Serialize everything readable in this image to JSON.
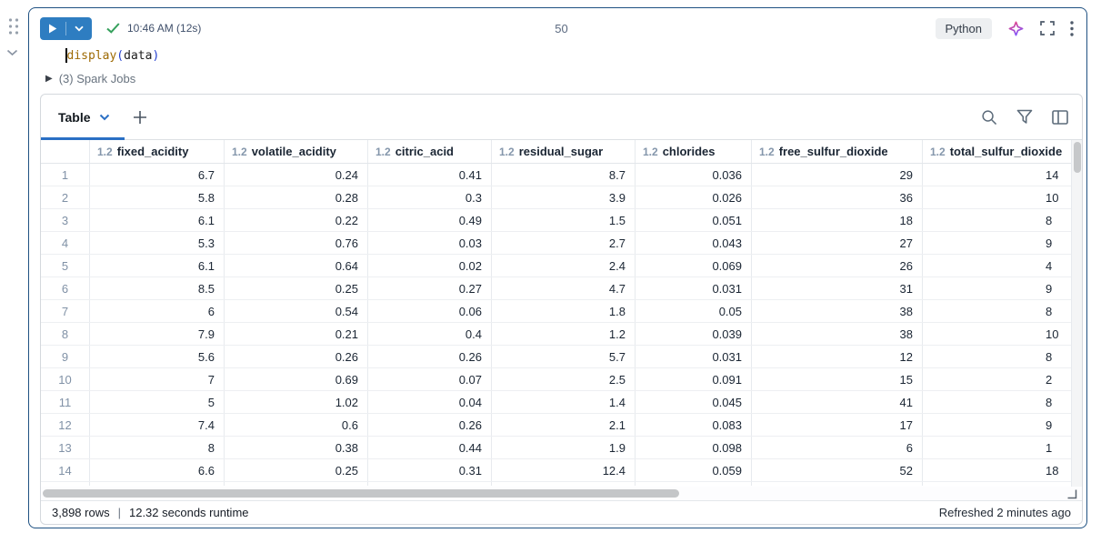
{
  "cell": {
    "toolbar": {
      "last_run": "10:46 AM (12s)",
      "cell_number": "50",
      "language": "Python"
    },
    "code": {
      "function": "display",
      "open": "(",
      "argument": "data",
      "close": ")"
    },
    "spark_jobs_label": "(3) Spark Jobs"
  },
  "result": {
    "tab_label": "Table",
    "add_tab_label": "+",
    "table": {
      "columns": [
        {
          "type": "1.2",
          "name": "fixed_acidity"
        },
        {
          "type": "1.2",
          "name": "volatile_acidity"
        },
        {
          "type": "1.2",
          "name": "citric_acid"
        },
        {
          "type": "1.2",
          "name": "residual_sugar"
        },
        {
          "type": "1.2",
          "name": "chlorides"
        },
        {
          "type": "1.2",
          "name": "free_sulfur_dioxide"
        },
        {
          "type": "1.2",
          "name": "total_sulfur_dioxide"
        }
      ],
      "rows": [
        {
          "n": "1",
          "values": [
            "6.7",
            "0.24",
            "0.41",
            "8.7",
            "0.036",
            "29",
            "14"
          ]
        },
        {
          "n": "2",
          "values": [
            "5.8",
            "0.28",
            "0.3",
            "3.9",
            "0.026",
            "36",
            "10"
          ]
        },
        {
          "n": "3",
          "values": [
            "6.1",
            "0.22",
            "0.49",
            "1.5",
            "0.051",
            "18",
            "8"
          ]
        },
        {
          "n": "4",
          "values": [
            "5.3",
            "0.76",
            "0.03",
            "2.7",
            "0.043",
            "27",
            "9"
          ]
        },
        {
          "n": "5",
          "values": [
            "6.1",
            "0.64",
            "0.02",
            "2.4",
            "0.069",
            "26",
            "4"
          ]
        },
        {
          "n": "6",
          "values": [
            "8.5",
            "0.25",
            "0.27",
            "4.7",
            "0.031",
            "31",
            "9"
          ]
        },
        {
          "n": "7",
          "values": [
            "6",
            "0.54",
            "0.06",
            "1.8",
            "0.05",
            "38",
            "8"
          ]
        },
        {
          "n": "8",
          "values": [
            "7.9",
            "0.21",
            "0.4",
            "1.2",
            "0.039",
            "38",
            "10"
          ]
        },
        {
          "n": "9",
          "values": [
            "5.6",
            "0.26",
            "0.26",
            "5.7",
            "0.031",
            "12",
            "8"
          ]
        },
        {
          "n": "10",
          "values": [
            "7",
            "0.69",
            "0.07",
            "2.5",
            "0.091",
            "15",
            "2"
          ]
        },
        {
          "n": "11",
          "values": [
            "5",
            "1.02",
            "0.04",
            "1.4",
            "0.045",
            "41",
            "8"
          ]
        },
        {
          "n": "12",
          "values": [
            "7.4",
            "0.6",
            "0.26",
            "2.1",
            "0.083",
            "17",
            "9"
          ]
        },
        {
          "n": "13",
          "values": [
            "8",
            "0.38",
            "0.44",
            "1.9",
            "0.098",
            "6",
            "1"
          ]
        },
        {
          "n": "14",
          "values": [
            "6.6",
            "0.25",
            "0.31",
            "12.4",
            "0.059",
            "52",
            "18"
          ]
        }
      ]
    }
  },
  "status": {
    "row_count": "3,898 rows",
    "separator": "|",
    "runtime": "12.32 seconds runtime",
    "refreshed": "Refreshed 2 minutes ago"
  },
  "colors": {
    "selected_cell_border": "#1f5182",
    "run_button_blue": "#2e7dc1",
    "success_green": "#35a05c",
    "accent_blue": "#2a6fc4"
  }
}
